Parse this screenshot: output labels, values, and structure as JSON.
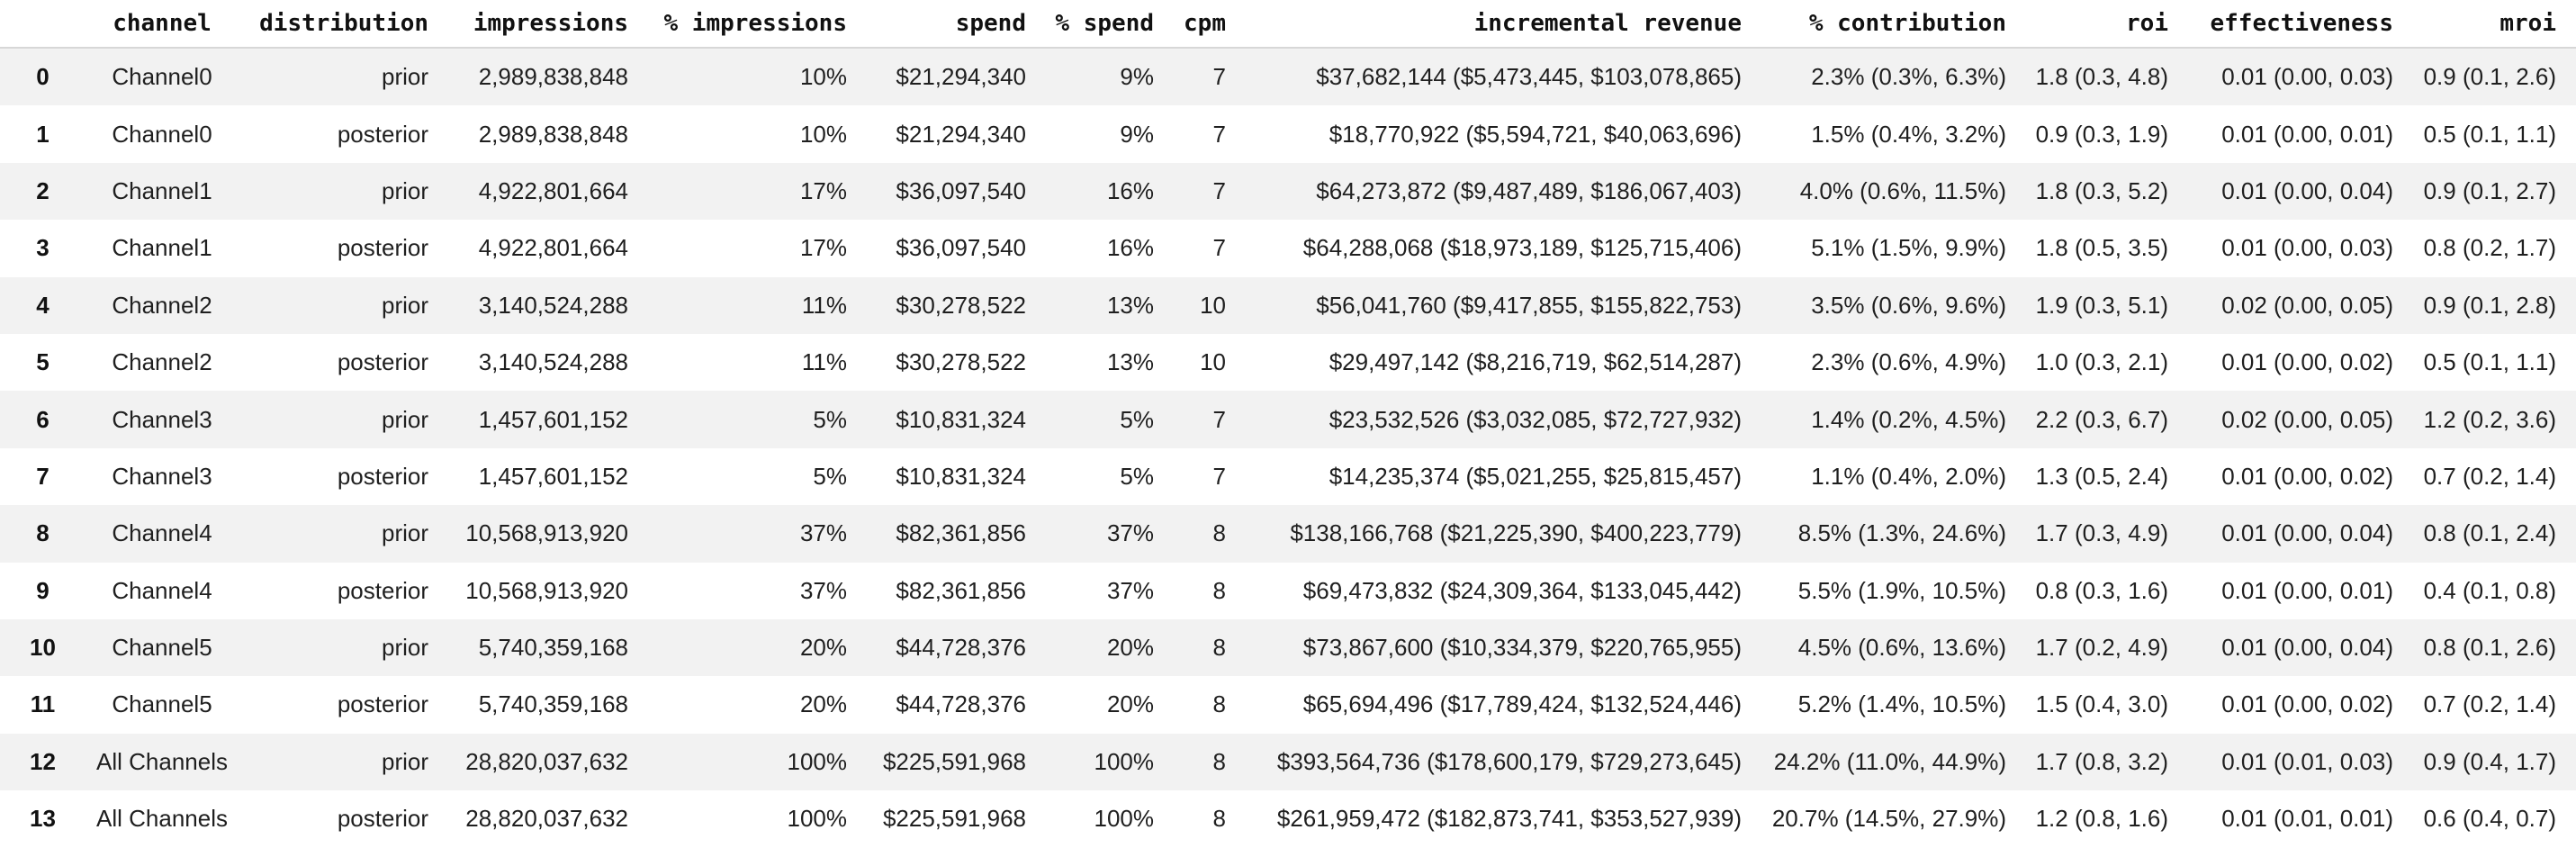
{
  "chart_data": {
    "type": "table",
    "title": "",
    "columns": [
      "",
      "channel",
      "distribution",
      "impressions",
      "% impressions",
      "spend",
      "% spend",
      "cpm",
      "incremental revenue",
      "% contribution",
      "roi",
      "effectiveness",
      "mroi"
    ],
    "rows": [
      [
        "0",
        "Channel0",
        "prior",
        "2,989,838,848",
        "10%",
        "$21,294,340",
        "9%",
        "7",
        "$37,682,144 ($5,473,445, $103,078,865)",
        "2.3% (0.3%, 6.3%)",
        "1.8 (0.3, 4.8)",
        "0.01 (0.00, 0.03)",
        "0.9 (0.1, 2.6)"
      ],
      [
        "1",
        "Channel0",
        "posterior",
        "2,989,838,848",
        "10%",
        "$21,294,340",
        "9%",
        "7",
        "$18,770,922 ($5,594,721, $40,063,696)",
        "1.5% (0.4%, 3.2%)",
        "0.9 (0.3, 1.9)",
        "0.01 (0.00, 0.01)",
        "0.5 (0.1, 1.1)"
      ],
      [
        "2",
        "Channel1",
        "prior",
        "4,922,801,664",
        "17%",
        "$36,097,540",
        "16%",
        "7",
        "$64,273,872 ($9,487,489, $186,067,403)",
        "4.0% (0.6%, 11.5%)",
        "1.8 (0.3, 5.2)",
        "0.01 (0.00, 0.04)",
        "0.9 (0.1, 2.7)"
      ],
      [
        "3",
        "Channel1",
        "posterior",
        "4,922,801,664",
        "17%",
        "$36,097,540",
        "16%",
        "7",
        "$64,288,068 ($18,973,189, $125,715,406)",
        "5.1% (1.5%, 9.9%)",
        "1.8 (0.5, 3.5)",
        "0.01 (0.00, 0.03)",
        "0.8 (0.2, 1.7)"
      ],
      [
        "4",
        "Channel2",
        "prior",
        "3,140,524,288",
        "11%",
        "$30,278,522",
        "13%",
        "10",
        "$56,041,760 ($9,417,855, $155,822,753)",
        "3.5% (0.6%, 9.6%)",
        "1.9 (0.3, 5.1)",
        "0.02 (0.00, 0.05)",
        "0.9 (0.1, 2.8)"
      ],
      [
        "5",
        "Channel2",
        "posterior",
        "3,140,524,288",
        "11%",
        "$30,278,522",
        "13%",
        "10",
        "$29,497,142 ($8,216,719, $62,514,287)",
        "2.3% (0.6%, 4.9%)",
        "1.0 (0.3, 2.1)",
        "0.01 (0.00, 0.02)",
        "0.5 (0.1, 1.1)"
      ],
      [
        "6",
        "Channel3",
        "prior",
        "1,457,601,152",
        "5%",
        "$10,831,324",
        "5%",
        "7",
        "$23,532,526 ($3,032,085, $72,727,932)",
        "1.4% (0.2%, 4.5%)",
        "2.2 (0.3, 6.7)",
        "0.02 (0.00, 0.05)",
        "1.2 (0.2, 3.6)"
      ],
      [
        "7",
        "Channel3",
        "posterior",
        "1,457,601,152",
        "5%",
        "$10,831,324",
        "5%",
        "7",
        "$14,235,374 ($5,021,255, $25,815,457)",
        "1.1% (0.4%, 2.0%)",
        "1.3 (0.5, 2.4)",
        "0.01 (0.00, 0.02)",
        "0.7 (0.2, 1.4)"
      ],
      [
        "8",
        "Channel4",
        "prior",
        "10,568,913,920",
        "37%",
        "$82,361,856",
        "37%",
        "8",
        "$138,166,768 ($21,225,390, $400,223,779)",
        "8.5% (1.3%, 24.6%)",
        "1.7 (0.3, 4.9)",
        "0.01 (0.00, 0.04)",
        "0.8 (0.1, 2.4)"
      ],
      [
        "9",
        "Channel4",
        "posterior",
        "10,568,913,920",
        "37%",
        "$82,361,856",
        "37%",
        "8",
        "$69,473,832 ($24,309,364, $133,045,442)",
        "5.5% (1.9%, 10.5%)",
        "0.8 (0.3, 1.6)",
        "0.01 (0.00, 0.01)",
        "0.4 (0.1, 0.8)"
      ],
      [
        "10",
        "Channel5",
        "prior",
        "5,740,359,168",
        "20%",
        "$44,728,376",
        "20%",
        "8",
        "$73,867,600 ($10,334,379, $220,765,955)",
        "4.5% (0.6%, 13.6%)",
        "1.7 (0.2, 4.9)",
        "0.01 (0.00, 0.04)",
        "0.8 (0.1, 2.6)"
      ],
      [
        "11",
        "Channel5",
        "posterior",
        "5,740,359,168",
        "20%",
        "$44,728,376",
        "20%",
        "8",
        "$65,694,496 ($17,789,424, $132,524,446)",
        "5.2% (1.4%, 10.5%)",
        "1.5 (0.4, 3.0)",
        "0.01 (0.00, 0.02)",
        "0.7 (0.2, 1.4)"
      ],
      [
        "12",
        "All Channels",
        "prior",
        "28,820,037,632",
        "100%",
        "$225,591,968",
        "100%",
        "8",
        "$393,564,736 ($178,600,179, $729,273,645)",
        "24.2% (11.0%, 44.9%)",
        "1.7 (0.8, 3.2)",
        "0.01 (0.01, 0.03)",
        "0.9 (0.4, 1.7)"
      ],
      [
        "13",
        "All Channels",
        "posterior",
        "28,820,037,632",
        "100%",
        "$225,591,968",
        "100%",
        "8",
        "$261,959,472 ($182,873,741, $353,527,939)",
        "20.7% (14.5%, 27.9%)",
        "1.2 (0.8, 1.6)",
        "0.01 (0.01, 0.01)",
        "0.6 (0.4, 0.7)"
      ]
    ],
    "layout": {
      "grid": false,
      "zebra_striping": true,
      "header_font": "bold monospace",
      "body_font": "sans-serif"
    }
  },
  "colors": {
    "row_stripe": "#f2f2f2",
    "row_plain": "#ffffff",
    "header_border": "#d7d7d7",
    "text": "#1f1f1f"
  }
}
